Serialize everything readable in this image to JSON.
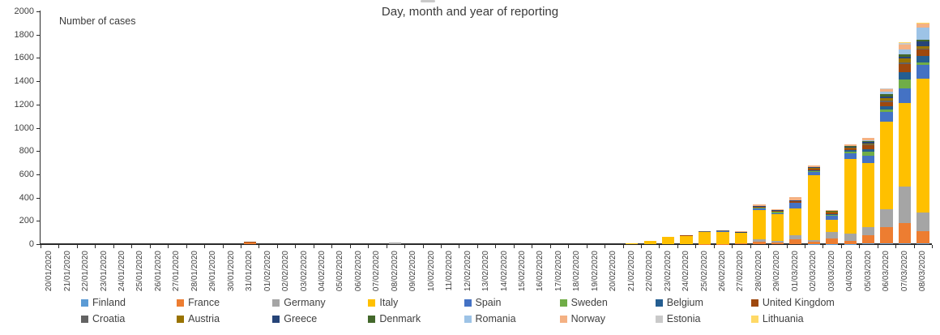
{
  "chart_data": {
    "type": "bar",
    "stacked": true,
    "title": "Day, month and year of reporting",
    "ylabel": "Number of cases",
    "xlabel": "",
    "ylim": [
      0,
      2000
    ],
    "y_ticks": [
      0,
      200,
      400,
      600,
      800,
      1000,
      1200,
      1400,
      1600,
      1800,
      2000
    ],
    "grid": false,
    "x_tick_rotation": 90,
    "legend_position": "bottom",
    "legend_rows": [
      [
        "Finland",
        "France",
        "Germany",
        "Italy",
        "Spain",
        "Sweden",
        "Belgium",
        "United Kingdom"
      ],
      [
        "Croatia",
        "Austria",
        "Greece",
        "Denmark",
        "Romania",
        "Norway",
        "Estonia",
        "Lithuania"
      ]
    ],
    "categories": [
      "20/01/2020",
      "21/01/2020",
      "22/01/2020",
      "23/01/2020",
      "24/01/2020",
      "25/01/2020",
      "26/01/2020",
      "27/01/2020",
      "28/01/2020",
      "29/01/2020",
      "30/01/2020",
      "31/01/2020",
      "01/02/2020",
      "02/02/2020",
      "03/02/2020",
      "04/02/2020",
      "05/02/2020",
      "06/02/2020",
      "07/02/2020",
      "08/02/2020",
      "09/02/2020",
      "10/02/2020",
      "11/02/2020",
      "12/02/2020",
      "13/02/2020",
      "14/02/2020",
      "15/02/2020",
      "16/02/2020",
      "17/02/2020",
      "18/02/2020",
      "19/02/2020",
      "20/02/2020",
      "21/02/2020",
      "22/02/2020",
      "23/02/2020",
      "24/02/2020",
      "25/02/2020",
      "26/02/2020",
      "27/02/2020",
      "28/02/2020",
      "29/02/2020",
      "01/03/2020",
      "02/03/2020",
      "03/03/2020",
      "04/03/2020",
      "05/03/2020",
      "06/03/2020",
      "07/03/2020",
      "08/03/2020"
    ],
    "series": [
      {
        "name": "Finland",
        "color": "#5B9BD5",
        "values": [
          0,
          0,
          0,
          0,
          0,
          0,
          0,
          0,
          0,
          0,
          0,
          0,
          0,
          0,
          0,
          0,
          0,
          0,
          0,
          0,
          0,
          0,
          0,
          0,
          0,
          0,
          0,
          0,
          0,
          0,
          0,
          0,
          0,
          0,
          0,
          0,
          0,
          0,
          0,
          0,
          0,
          0,
          3,
          2,
          3,
          5,
          8,
          8,
          10
        ]
      },
      {
        "name": "France",
        "color": "#ED7D31",
        "values": [
          0,
          0,
          0,
          0,
          0,
          0,
          0,
          0,
          0,
          0,
          0,
          12,
          0,
          0,
          0,
          0,
          0,
          0,
          0,
          0,
          0,
          0,
          0,
          0,
          0,
          0,
          0,
          0,
          0,
          0,
          0,
          0,
          0,
          0,
          0,
          0,
          3,
          3,
          5,
          20,
          15,
          45,
          15,
          50,
          25,
          70,
          140,
          175,
          105
        ]
      },
      {
        "name": "Germany",
        "color": "#A5A5A5",
        "values": [
          0,
          0,
          0,
          0,
          0,
          0,
          0,
          0,
          0,
          0,
          0,
          0,
          0,
          0,
          0,
          0,
          0,
          0,
          0,
          12,
          0,
          0,
          0,
          0,
          0,
          0,
          0,
          0,
          0,
          0,
          0,
          0,
          0,
          0,
          0,
          0,
          0,
          0,
          0,
          25,
          10,
          35,
          18,
          55,
          60,
          70,
          150,
          310,
          160
        ]
      },
      {
        "name": "Italy",
        "color": "#FFC000",
        "values": [
          0,
          0,
          0,
          0,
          0,
          0,
          0,
          0,
          0,
          0,
          0,
          0,
          0,
          0,
          0,
          0,
          0,
          0,
          0,
          0,
          0,
          0,
          0,
          0,
          0,
          0,
          0,
          0,
          0,
          0,
          0,
          0,
          5,
          30,
          60,
          70,
          100,
          105,
          90,
          250,
          230,
          230,
          560,
          105,
          645,
          555,
          755,
          720,
          1150
        ]
      },
      {
        "name": "Spain",
        "color": "#4472C4",
        "values": [
          0,
          0,
          0,
          0,
          0,
          0,
          0,
          0,
          0,
          0,
          0,
          0,
          0,
          0,
          0,
          0,
          0,
          0,
          0,
          0,
          0,
          0,
          0,
          0,
          0,
          0,
          0,
          0,
          0,
          0,
          0,
          0,
          0,
          0,
          0,
          0,
          4,
          4,
          3,
          15,
          10,
          45,
          25,
          35,
          50,
          60,
          80,
          125,
          115
        ]
      },
      {
        "name": "Sweden",
        "color": "#70AD47",
        "values": [
          0,
          0,
          0,
          0,
          0,
          0,
          0,
          0,
          0,
          0,
          0,
          0,
          0,
          0,
          0,
          0,
          0,
          0,
          0,
          0,
          0,
          0,
          0,
          0,
          0,
          0,
          0,
          0,
          0,
          0,
          0,
          0,
          0,
          0,
          0,
          0,
          0,
          2,
          2,
          5,
          15,
          3,
          5,
          5,
          10,
          35,
          25,
          80,
          20
        ]
      },
      {
        "name": "Belgium",
        "color": "#255E91",
        "values": [
          0,
          0,
          0,
          0,
          0,
          0,
          0,
          0,
          0,
          0,
          0,
          0,
          0,
          0,
          0,
          0,
          0,
          0,
          0,
          0,
          0,
          0,
          0,
          0,
          0,
          0,
          0,
          0,
          0,
          0,
          0,
          0,
          0,
          0,
          0,
          0,
          0,
          0,
          0,
          0,
          1,
          0,
          10,
          5,
          15,
          20,
          30,
          60,
          60
        ]
      },
      {
        "name": "United Kingdom",
        "color": "#9E480E",
        "values": [
          0,
          0,
          0,
          0,
          0,
          0,
          0,
          0,
          0,
          0,
          0,
          6,
          0,
          0,
          0,
          0,
          0,
          0,
          0,
          0,
          0,
          0,
          0,
          0,
          0,
          0,
          0,
          0,
          0,
          0,
          0,
          0,
          0,
          0,
          0,
          6,
          0,
          0,
          0,
          5,
          5,
          10,
          15,
          12,
          12,
          35,
          35,
          70,
          55
        ]
      },
      {
        "name": "Croatia",
        "color": "#636363",
        "values": [
          0,
          0,
          0,
          0,
          0,
          0,
          0,
          0,
          0,
          0,
          0,
          0,
          0,
          0,
          0,
          0,
          0,
          0,
          0,
          0,
          0,
          0,
          0,
          0,
          0,
          0,
          0,
          0,
          0,
          0,
          0,
          0,
          0,
          0,
          0,
          0,
          3,
          2,
          0,
          0,
          0,
          0,
          0,
          2,
          3,
          5,
          8,
          10,
          8
        ]
      },
      {
        "name": "Austria",
        "color": "#997300",
        "values": [
          0,
          0,
          0,
          0,
          0,
          0,
          0,
          0,
          0,
          0,
          0,
          0,
          0,
          0,
          0,
          0,
          0,
          0,
          0,
          0,
          0,
          0,
          0,
          0,
          0,
          0,
          0,
          0,
          0,
          0,
          0,
          0,
          0,
          0,
          0,
          0,
          4,
          2,
          0,
          3,
          2,
          4,
          5,
          6,
          10,
          12,
          25,
          35,
          15
        ]
      },
      {
        "name": "Greece",
        "color": "#264478",
        "values": [
          0,
          0,
          0,
          0,
          0,
          0,
          0,
          0,
          0,
          0,
          0,
          0,
          0,
          0,
          0,
          0,
          0,
          0,
          0,
          0,
          0,
          0,
          0,
          0,
          0,
          0,
          0,
          0,
          0,
          0,
          0,
          0,
          0,
          0,
          0,
          0,
          0,
          0,
          2,
          2,
          2,
          3,
          4,
          4,
          5,
          10,
          12,
          20,
          45
        ]
      },
      {
        "name": "Denmark",
        "color": "#43682B",
        "values": [
          0,
          0,
          0,
          0,
          0,
          0,
          0,
          0,
          0,
          0,
          0,
          0,
          0,
          0,
          0,
          0,
          0,
          0,
          0,
          0,
          0,
          0,
          0,
          0,
          0,
          0,
          0,
          0,
          0,
          0,
          0,
          0,
          0,
          0,
          0,
          0,
          0,
          0,
          0,
          2,
          2,
          2,
          2,
          3,
          5,
          8,
          20,
          15,
          15
        ]
      },
      {
        "name": "Romania",
        "color": "#9DC3E6",
        "values": [
          0,
          0,
          0,
          0,
          0,
          0,
          0,
          0,
          0,
          0,
          0,
          0,
          0,
          0,
          0,
          0,
          0,
          0,
          0,
          0,
          0,
          0,
          0,
          0,
          0,
          0,
          0,
          0,
          0,
          0,
          0,
          0,
          0,
          0,
          0,
          0,
          0,
          0,
          0,
          2,
          2,
          2,
          2,
          2,
          4,
          6,
          20,
          45,
          100
        ]
      },
      {
        "name": "Norway",
        "color": "#F4B183",
        "values": [
          0,
          0,
          0,
          0,
          0,
          0,
          0,
          0,
          0,
          0,
          0,
          0,
          0,
          0,
          0,
          0,
          0,
          0,
          0,
          0,
          0,
          0,
          0,
          0,
          0,
          0,
          0,
          0,
          0,
          0,
          0,
          0,
          0,
          0,
          0,
          0,
          0,
          0,
          8,
          10,
          5,
          25,
          10,
          8,
          10,
          20,
          25,
          45,
          35
        ]
      },
      {
        "name": "Estonia",
        "color": "#C9C9C9",
        "values": [
          0,
          0,
          0,
          0,
          0,
          0,
          0,
          0,
          0,
          0,
          0,
          0,
          0,
          0,
          0,
          0,
          0,
          0,
          0,
          0,
          0,
          0,
          0,
          0,
          0,
          0,
          0,
          0,
          0,
          0,
          0,
          0,
          0,
          0,
          0,
          0,
          0,
          0,
          0,
          2,
          0,
          0,
          2,
          2,
          2,
          2,
          5,
          10,
          5
        ]
      },
      {
        "name": "Lithuania",
        "color": "#FFD966",
        "values": [
          0,
          0,
          0,
          0,
          0,
          0,
          0,
          0,
          0,
          0,
          0,
          0,
          0,
          0,
          0,
          0,
          0,
          0,
          0,
          0,
          0,
          0,
          0,
          0,
          0,
          0,
          0,
          0,
          0,
          0,
          0,
          0,
          0,
          0,
          0,
          0,
          0,
          0,
          0,
          1,
          0,
          0,
          0,
          0,
          0,
          0,
          2,
          5,
          5
        ]
      }
    ]
  }
}
